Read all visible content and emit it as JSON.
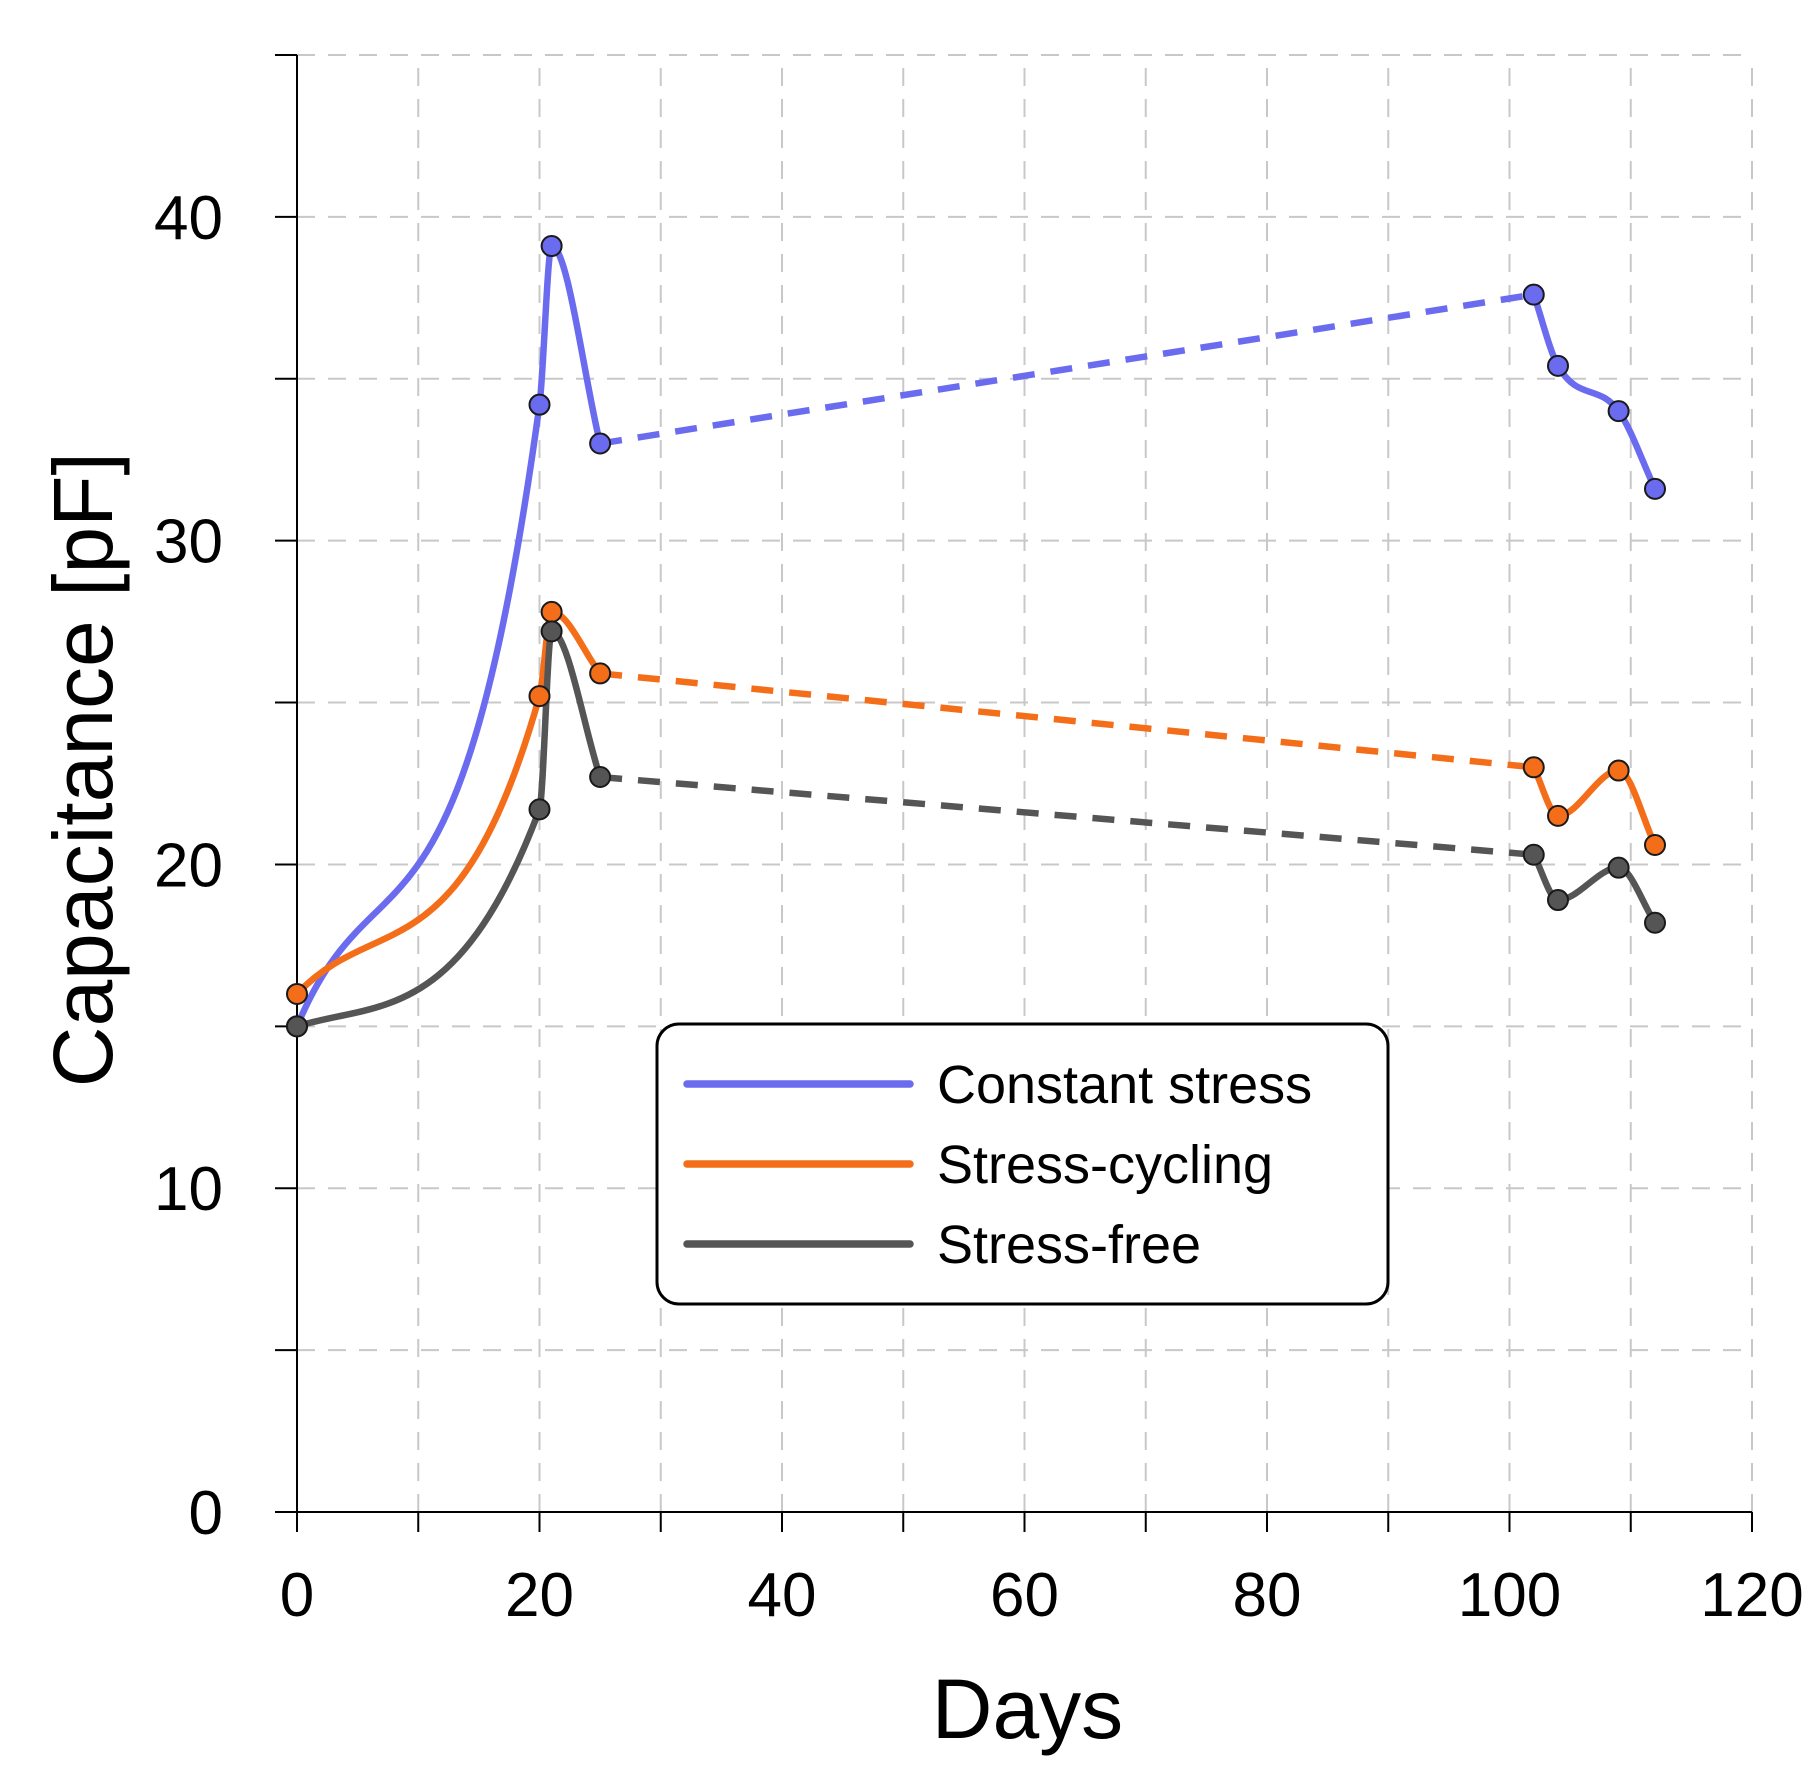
{
  "chart_data": {
    "type": "line",
    "title": "",
    "xlabel": "Days",
    "ylabel": "Capacitance [pF]",
    "xlim": [
      0,
      120
    ],
    "ylim": [
      0,
      45
    ],
    "xticks": [
      0,
      20,
      40,
      60,
      80,
      100,
      120
    ],
    "xtick_labels": [
      "0",
      "20",
      "40",
      "60",
      "80",
      "100",
      "120"
    ],
    "x_minor_ticks": [
      10,
      30,
      50,
      70,
      90,
      110
    ],
    "yticks": [
      0,
      10,
      20,
      30,
      40
    ],
    "ytick_labels": [
      "0",
      "10",
      "20",
      "30",
      "40"
    ],
    "y_minor_ticks": [
      5,
      15,
      25,
      35,
      45
    ],
    "grid": true,
    "legend_position": "center",
    "series": [
      {
        "name": "Constant stress",
        "color": "#6b6bf0",
        "x": [
          0,
          20,
          21,
          25,
          102,
          104,
          109,
          112
        ],
        "values": [
          15.0,
          34.2,
          39.1,
          33.0,
          37.6,
          35.4,
          34.0,
          31.6
        ],
        "dashed_segments": [
          [
            25,
            102
          ]
        ]
      },
      {
        "name": "Stress-cycling",
        "color": "#f46e1a",
        "x": [
          0,
          20,
          21,
          25,
          102,
          104,
          109,
          112
        ],
        "values": [
          16.0,
          25.2,
          27.8,
          25.9,
          23.0,
          21.5,
          22.9,
          20.6
        ],
        "dashed_segments": [
          [
            25,
            102
          ]
        ]
      },
      {
        "name": "Stress-free",
        "color": "#555555",
        "x": [
          0,
          20,
          21,
          25,
          102,
          104,
          109,
          112
        ],
        "values": [
          15.0,
          21.7,
          27.2,
          22.7,
          20.3,
          18.9,
          19.9,
          18.2
        ],
        "dashed_segments": [
          [
            25,
            102
          ]
        ]
      }
    ]
  }
}
